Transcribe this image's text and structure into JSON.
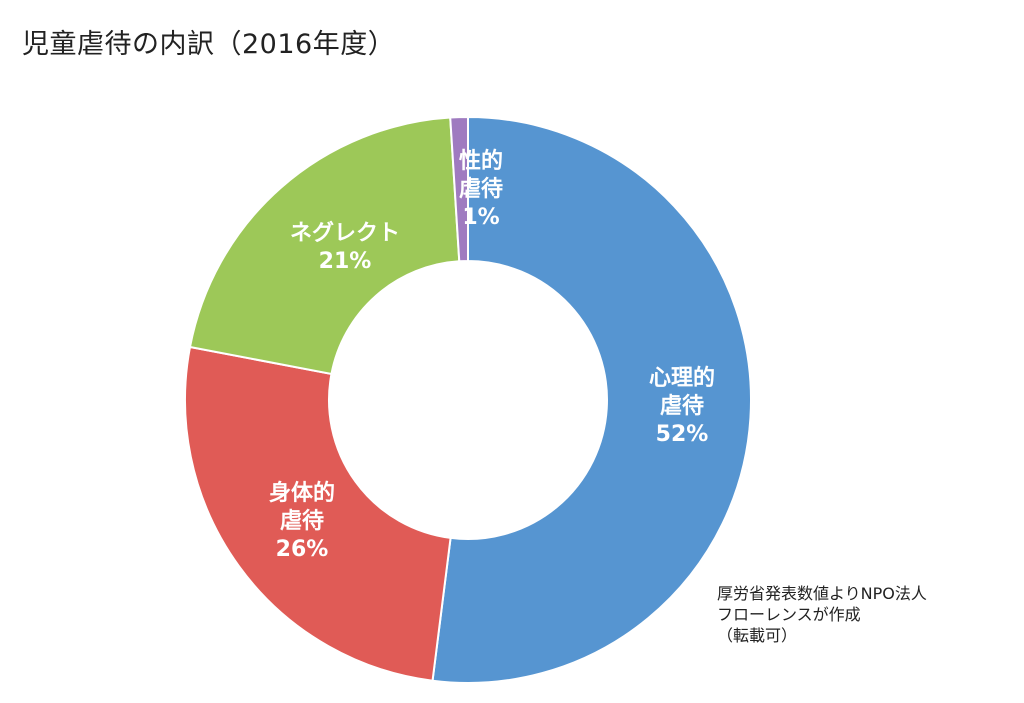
{
  "chart_data": {
    "type": "pie",
    "variant": "donut",
    "title": "児童虐待の内訳（2016年度）",
    "start": "12 o'clock, clockwise",
    "slices": [
      {
        "label_lines": [
          "心理的",
          "虐待"
        ],
        "label": "心理的虐待",
        "value": 52,
        "value_text": "52%",
        "color": "#5695d1"
      },
      {
        "label_lines": [
          "身体的",
          "虐待"
        ],
        "label": "身体的虐待",
        "value": 26,
        "value_text": "26%",
        "color": "#e05b56"
      },
      {
        "label_lines": [
          "ネグレクト"
        ],
        "label": "ネグレクト",
        "value": 21,
        "value_text": "21%",
        "color": "#9dc858"
      },
      {
        "label_lines": [
          "性的",
          "虐待"
        ],
        "label": "性的虐待",
        "value": 1,
        "value_text": "1%",
        "color": "#9f7bc0"
      }
    ],
    "legend": "none",
    "annotation_lines": [
      "厚労省発表数値よりNPO法人",
      "フローレンスが作成",
      "（転載可）"
    ]
  }
}
